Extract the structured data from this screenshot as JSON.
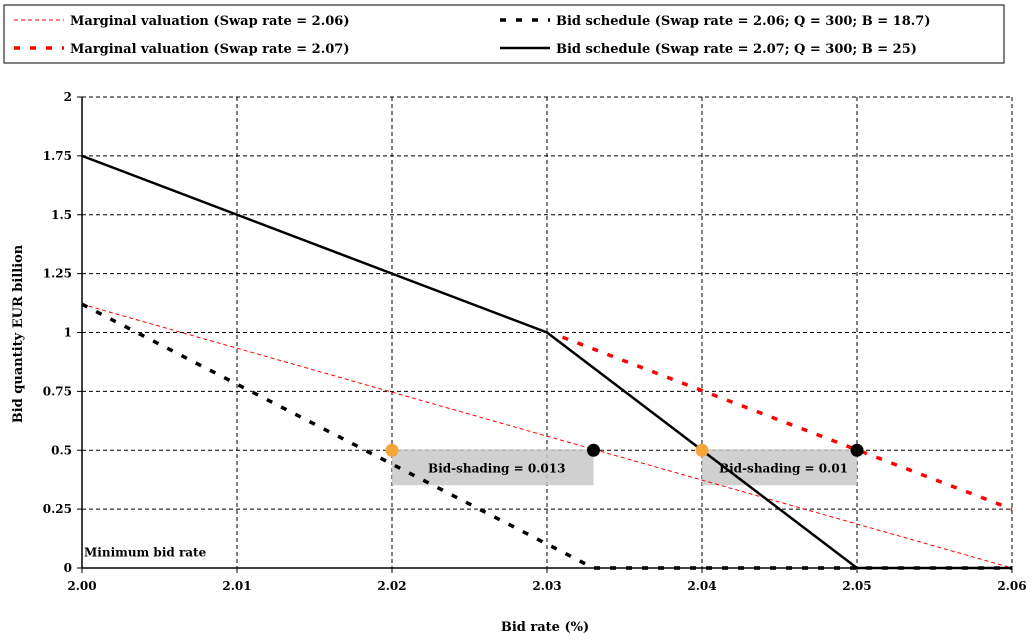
{
  "chart_data": {
    "type": "line",
    "xlabel": "Bid rate (%)",
    "ylabel": "Bid quantity EUR billion",
    "xlim": [
      2.0,
      2.06
    ],
    "ylim": [
      0,
      2
    ],
    "x_ticks": [
      "2.00",
      "2.01",
      "2.02",
      "2.03",
      "2.04",
      "2.05",
      "2.06"
    ],
    "y_ticks": [
      "0",
      "0.25",
      "0.5",
      "0.75",
      "1",
      "1.25",
      "1.5",
      "1.75",
      "2"
    ],
    "grid": true,
    "legend_position": "top",
    "series": [
      {
        "name": "Marginal valuation (Swap rate = 2.06)",
        "color": "#ff0000",
        "style": "thin-dashed",
        "x": [
          2.0,
          2.06
        ],
        "y": [
          1.12,
          0
        ]
      },
      {
        "name": "Marginal valuation (Swap rate = 2.07)",
        "color": "#ff0000",
        "style": "thick-dashed",
        "x": [
          2.031,
          2.06
        ],
        "y": [
          0.98,
          0.25
        ]
      },
      {
        "name": "Bid schedule (Swap rate = 2.06; Q = 300; B = 18.7)",
        "color": "#000000",
        "style": "thick-dashed",
        "x": [
          2.0,
          2.033,
          2.06
        ],
        "y": [
          1.12,
          0,
          0
        ]
      },
      {
        "name": "Bid schedule (Swap rate = 2.07; Q = 300; B = 25)",
        "color": "#000000",
        "style": "solid",
        "x": [
          2.0,
          2.03,
          2.04,
          2.05,
          2.06
        ],
        "y": [
          1.75,
          1.0,
          0.5,
          0,
          0
        ]
      }
    ],
    "points": [
      {
        "x": 2.02,
        "y": 0.5,
        "color": "#f4a63a"
      },
      {
        "x": 2.033,
        "y": 0.5,
        "color": "#000000"
      },
      {
        "x": 2.04,
        "y": 0.5,
        "color": "#f4a63a"
      },
      {
        "x": 2.05,
        "y": 0.5,
        "color": "#000000"
      }
    ],
    "annotations": [
      {
        "text": "Bid-shading = 0.013",
        "x0": 2.02,
        "x1": 2.033,
        "y": 0.5,
        "box_color": "#c8c8c8"
      },
      {
        "text": "Bid-shading = 0.01",
        "x0": 2.04,
        "x1": 2.05,
        "y": 0.5,
        "box_color": "#c8c8c8"
      },
      {
        "text": "Minimum bid rate",
        "x": 2.0,
        "y": 0.04
      }
    ]
  }
}
